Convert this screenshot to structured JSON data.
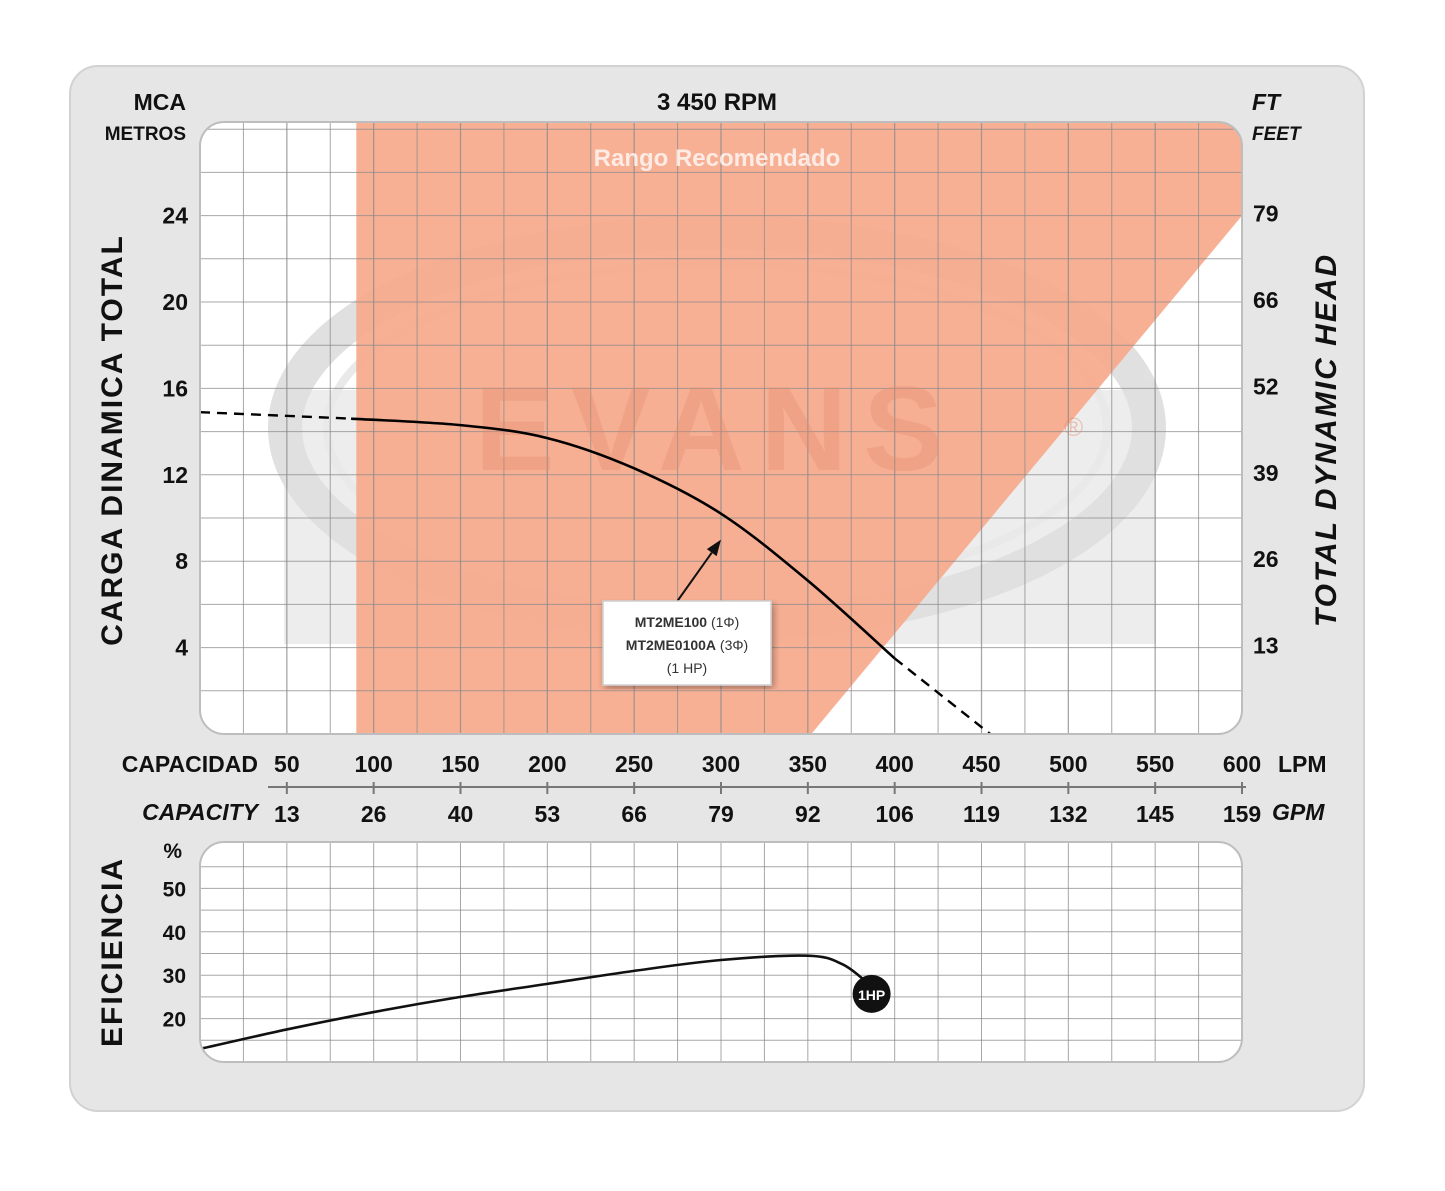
{
  "chart_data": [
    {
      "type": "line",
      "title": "3 450 RPM",
      "left_axis": {
        "unit": "MCA",
        "label": "METROS",
        "title": "CARGA  DINAMICA  TOTAL",
        "ticks": [
          4,
          8,
          12,
          16,
          20,
          24
        ]
      },
      "right_axis": {
        "unit": "FT",
        "label": "FEET",
        "title": "TOTAL  DYNAMIC  HEAD",
        "ticks": [
          "13",
          "26",
          "39",
          "52",
          "66",
          "79"
        ]
      },
      "x_axis": {
        "label": "CAPACIDAD",
        "unit": "LPM",
        "ticks": [
          50,
          100,
          150,
          200,
          250,
          300,
          350,
          400,
          450,
          500,
          550,
          600
        ],
        "label2": "CAPACITY",
        "unit2": "GPM",
        "ticks2": [
          "13",
          "26",
          "40",
          "53",
          "66",
          "79",
          "92",
          "106",
          "119",
          "132",
          "145",
          "159"
        ]
      },
      "xlim": [
        0,
        600
      ],
      "ylim": [
        0,
        28
      ],
      "grid": true,
      "recommended_range": {
        "label": "Rango Recomendado",
        "color": "#f7a98c"
      },
      "watermark": {
        "text": "EVANS",
        "mark": "®"
      },
      "series": [
        {
          "name": "MT2ME100",
          "color": "#000000",
          "solid": [
            [
              87,
              14.6
            ],
            [
              150,
              14.3
            ],
            [
              200,
              13.7
            ],
            [
              250,
              12.3
            ],
            [
              300,
              10.2
            ],
            [
              350,
              7.1
            ],
            [
              400,
              3.5
            ]
          ],
          "dashed_start": [
            [
              0,
              14.9
            ],
            [
              87,
              14.6
            ]
          ],
          "dashed_end": [
            [
              400,
              3.5
            ],
            [
              455,
              0
            ]
          ]
        }
      ],
      "annotation": {
        "lines": [
          {
            "model": "MT2ME100",
            "suffix": " (1Φ)"
          },
          {
            "model": "MT2ME0100A",
            "suffix": " (3Φ)"
          },
          {
            "model": "",
            "suffix": "(1 HP)"
          }
        ],
        "arrow_to": [
          300,
          9
        ]
      }
    },
    {
      "type": "line",
      "ylabel": "EFICIENCIA",
      "y_unit": "%",
      "ylim": [
        10,
        60
      ],
      "yticks": [
        20,
        30,
        40,
        50
      ],
      "grid": true,
      "series": [
        {
          "name": "1HP",
          "points": [
            [
              0,
              13
            ],
            [
              50,
              17.5
            ],
            [
              100,
              21.5
            ],
            [
              150,
              25
            ],
            [
              200,
              28
            ],
            [
              250,
              31
            ],
            [
              300,
              33.5
            ],
            [
              350,
              34.5
            ],
            [
              370,
              32.5
            ],
            [
              385,
              28
            ]
          ],
          "end_marker": "1HP"
        }
      ]
    }
  ]
}
